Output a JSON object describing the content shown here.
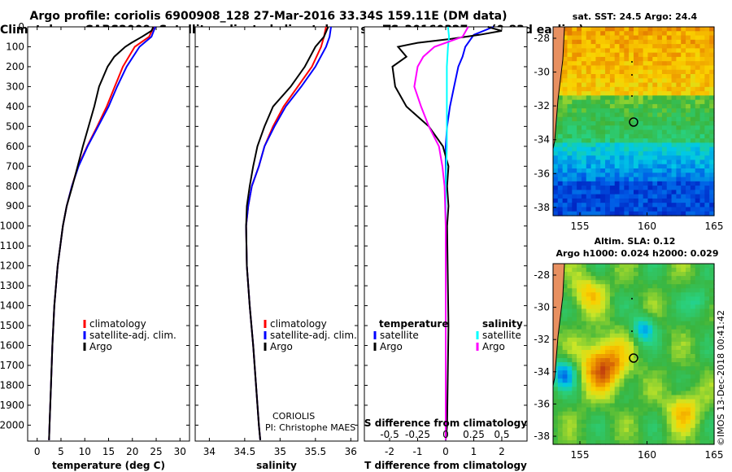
{
  "titles": {
    "line1": "Argo profile: coriolis 6900908_128 27-Mar-2016 33.34S 159.11E (DM data)",
    "line2": "Climatology: CARS2009. Satellite-adjusted climatology: synTS_20160327.nc (0.83d earlier)"
  },
  "map_top": {
    "title": "sat. SST: 24.5 Argo: 24.4",
    "x_ticks": [
      "155",
      "160",
      "165"
    ],
    "y_ticks": [
      "-28",
      "-30",
      "-32",
      "-34",
      "-36",
      "-38"
    ]
  },
  "map_bottom": {
    "title1": "Altim. SLA: 0.12",
    "title2": "Argo h1000: 0.024 h2000: 0.029",
    "x_ticks": [
      "155",
      "160",
      "165"
    ],
    "y_ticks": [
      "-28",
      "-30",
      "-32",
      "-34",
      "-36",
      "-38"
    ]
  },
  "stamp": "©IMOS 13-Dec-2018 00:41:42",
  "annotations": {
    "coriolis": "CORIOLIS",
    "pi": "PI: Christophe MAES"
  },
  "colors": {
    "climatology": "#ff0000",
    "satellite": "#0000ff",
    "argo": "#000000",
    "s_satellite": "#00ffff",
    "s_argo": "#ff00ff",
    "warm": "#d07818",
    "cool": "#2050d0",
    "land": "#e89060"
  },
  "chart_data": [
    {
      "type": "line",
      "xlabel": "temperature (deg C)",
      "y_ticks": [
        "0",
        "100",
        "200",
        "300",
        "400",
        "500",
        "600",
        "700",
        "800",
        "900",
        "1000",
        "1100",
        "1200",
        "1300",
        "1400",
        "1500",
        "1600",
        "1700",
        "1800",
        "1900",
        "2000"
      ],
      "x_ticks": [
        "0",
        "5",
        "10",
        "15",
        "20",
        "25",
        "30"
      ],
      "xlim": [
        -2,
        32
      ],
      "ylim": [
        2080,
        0
      ],
      "legend": [
        "climatology",
        "satellite-adj. clim.",
        "Argo"
      ],
      "series": [
        {
          "name": "climatology",
          "depth": [
            0,
            50,
            100,
            200,
            300,
            400,
            500,
            600,
            700,
            800,
            900,
            1000,
            1200,
            1400,
            1600,
            1800,
            2000,
            2075
          ],
          "values": [
            24.5,
            23.5,
            20.5,
            18,
            16.3,
            14.6,
            12.6,
            10.5,
            8.6,
            7.3,
            6.2,
            5.4,
            4.3,
            3.6,
            3.2,
            2.9,
            2.6,
            2.5
          ]
        },
        {
          "name": "satellite-adj. clim.",
          "depth": [
            0,
            50,
            100,
            200,
            300,
            400,
            500,
            600,
            700,
            800,
            900,
            1000,
            1200,
            1400,
            1600,
            1800,
            2000,
            2075
          ],
          "values": [
            24.8,
            24,
            21.5,
            18.8,
            16.8,
            15,
            12.8,
            10.6,
            8.7,
            7.3,
            6.2,
            5.4,
            4.3,
            3.6,
            3.2,
            2.9,
            2.6,
            2.5
          ]
        },
        {
          "name": "Argo",
          "depth": [
            0,
            20,
            50,
            80,
            100,
            150,
            200,
            300,
            400,
            500,
            600,
            700,
            800,
            900,
            1000,
            1200,
            1400,
            1600,
            1800,
            2000,
            2075
          ],
          "values": [
            24.4,
            24,
            22,
            19.8,
            18.5,
            16.2,
            14.8,
            13,
            12,
            10.8,
            9.6,
            8.5,
            7.4,
            6.2,
            5.4,
            4.3,
            3.6,
            3.2,
            2.9,
            2.6,
            2.5
          ]
        }
      ]
    },
    {
      "type": "line",
      "xlabel": "salinity",
      "x_ticks": [
        "34",
        "34.5",
        "35",
        "35.5",
        "36"
      ],
      "xlim": [
        33.8,
        36.1
      ],
      "ylim": [
        2080,
        0
      ],
      "legend": [
        "climatology",
        "satellite-adj. clim.",
        "Argo"
      ],
      "series": [
        {
          "name": "climatology",
          "depth": [
            0,
            50,
            100,
            200,
            300,
            400,
            500,
            600,
            700,
            800,
            900,
            1000,
            1200,
            1400,
            1600,
            1800,
            2000,
            2075
          ],
          "values": [
            35.65,
            35.62,
            35.58,
            35.45,
            35.25,
            35.05,
            34.9,
            34.78,
            34.7,
            34.6,
            34.55,
            34.52,
            34.53,
            34.57,
            34.62,
            34.66,
            34.7,
            34.72
          ]
        },
        {
          "name": "satellite-adj. clim.",
          "depth": [
            0,
            50,
            100,
            200,
            300,
            400,
            500,
            600,
            700,
            800,
            900,
            1000,
            1200,
            1400,
            1600,
            1800,
            2000,
            2075
          ],
          "values": [
            35.72,
            35.7,
            35.65,
            35.5,
            35.3,
            35.08,
            34.92,
            34.78,
            34.7,
            34.6,
            34.55,
            34.52,
            34.53,
            34.57,
            34.62,
            34.66,
            34.7,
            34.72
          ]
        },
        {
          "name": "Argo",
          "depth": [
            0,
            50,
            100,
            200,
            300,
            400,
            500,
            600,
            700,
            800,
            900,
            1000,
            1200,
            1400,
            1600,
            1800,
            2000,
            2075
          ],
          "values": [
            35.68,
            35.62,
            35.5,
            35.35,
            35.15,
            34.9,
            34.78,
            34.68,
            34.62,
            34.57,
            34.53,
            34.52,
            34.53,
            34.57,
            34.62,
            34.66,
            34.7,
            34.72
          ]
        }
      ]
    },
    {
      "type": "line",
      "xlabel": "T difference from climatology",
      "x_ticks": [
        "-2",
        "-1",
        "0",
        "1",
        "2"
      ],
      "top_xlabel": "S difference from climatology",
      "top_x_ticks": [
        "-0.5",
        "-0.25",
        "0",
        "0.25",
        "0.5"
      ],
      "xlim": [
        -2.9,
        2.9
      ],
      "ylim": [
        2080,
        0
      ],
      "legend_temperature": {
        "title": "temperature",
        "items": [
          "satellite",
          "Argo"
        ]
      },
      "legend_salinity": {
        "title": "salinity",
        "items": [
          "satellite",
          "Argo"
        ]
      },
      "series": [
        {
          "name": "temperature satellite",
          "depth": [
            0,
            40,
            100,
            150,
            200,
            300,
            400,
            500,
            600,
            700,
            800,
            1000,
            1500,
            2000,
            2075
          ],
          "values": [
            1.7,
            1,
            0.7,
            0.6,
            0.45,
            0.3,
            0.15,
            0.05,
            0,
            0,
            0,
            0,
            0,
            0,
            0
          ]
        },
        {
          "name": "temperature Argo",
          "depth": [
            0,
            20,
            40,
            60,
            80,
            100,
            150,
            200,
            300,
            400,
            500,
            600,
            700,
            800,
            900,
            1000,
            1500,
            2000,
            2075
          ],
          "values": [
            1.5,
            2,
            1.2,
            0.2,
            -1,
            -1.7,
            -1.4,
            -1.9,
            -1.8,
            -1.4,
            -0.6,
            -0.1,
            0.1,
            0.05,
            0.1,
            0.05,
            0.1,
            0.05,
            0
          ]
        },
        {
          "name": "salinity satellite",
          "depth": [
            0,
            50,
            100,
            200,
            400,
            600,
            800,
            1000,
            1500,
            2000,
            2075
          ],
          "values": [
            0.02,
            0.03,
            0.02,
            0.01,
            0.01,
            0.01,
            0,
            0,
            0,
            0,
            0
          ]
        },
        {
          "name": "salinity Argo",
          "depth": [
            0,
            50,
            100,
            150,
            200,
            300,
            400,
            500,
            600,
            700,
            800,
            1000,
            1500,
            2000,
            2075
          ],
          "values": [
            0.2,
            0.15,
            -0.1,
            -0.2,
            -0.25,
            -0.28,
            -0.22,
            -0.15,
            -0.06,
            -0.03,
            -0.01,
            0,
            0,
            0,
            0
          ]
        }
      ]
    }
  ]
}
